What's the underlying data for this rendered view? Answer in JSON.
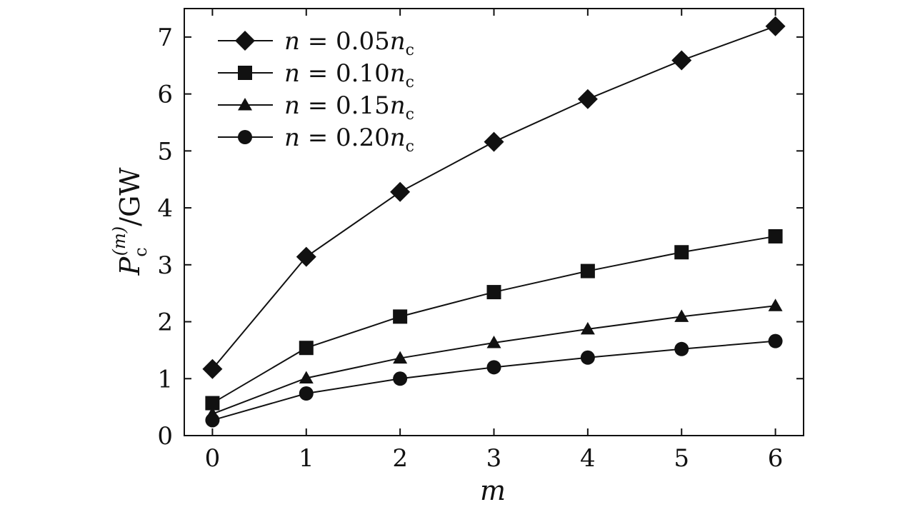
{
  "chart_data": {
    "type": "line",
    "x": [
      0,
      1,
      2,
      3,
      4,
      5,
      6
    ],
    "xlabel": "m",
    "ylabel": "P_c^(m)/GW",
    "ylabel_parts": {
      "base": "P",
      "sub": "c",
      "sup": "(m)",
      "unit": "/GW"
    },
    "xlim": [
      -0.3,
      6.3
    ],
    "ylim": [
      0,
      7.5
    ],
    "xticks": [
      "0",
      "1",
      "2",
      "3",
      "4",
      "5",
      "6"
    ],
    "yticks": [
      "0",
      "1",
      "2",
      "3",
      "4",
      "5",
      "6",
      "7"
    ],
    "grid": false,
    "legend_position": "top-left",
    "series": [
      {
        "name": "n = 0.05n_c",
        "label_parts": {
          "lhs": "n",
          "eq": "=",
          "coef": "0.05",
          "var": "n",
          "sub": "c"
        },
        "marker": "diamond",
        "values": [
          1.17,
          3.14,
          4.28,
          5.16,
          5.91,
          6.59,
          7.19
        ]
      },
      {
        "name": "n = 0.10n_c",
        "label_parts": {
          "lhs": "n",
          "eq": "=",
          "coef": "0.10",
          "var": "n",
          "sub": "c"
        },
        "marker": "square",
        "values": [
          0.57,
          1.54,
          2.09,
          2.52,
          2.89,
          3.22,
          3.5
        ]
      },
      {
        "name": "n = 0.15n_c",
        "label_parts": {
          "lhs": "n",
          "eq": "=",
          "coef": "0.15",
          "var": "n",
          "sub": "c"
        },
        "marker": "triangle",
        "values": [
          0.38,
          1.01,
          1.36,
          1.63,
          1.87,
          2.09,
          2.28
        ]
      },
      {
        "name": "n = 0.20n_c",
        "label_parts": {
          "lhs": "n",
          "eq": "=",
          "coef": "0.20",
          "var": "n",
          "sub": "c"
        },
        "marker": "circle",
        "values": [
          0.27,
          0.74,
          1.0,
          1.2,
          1.37,
          1.52,
          1.66
        ]
      }
    ]
  }
}
